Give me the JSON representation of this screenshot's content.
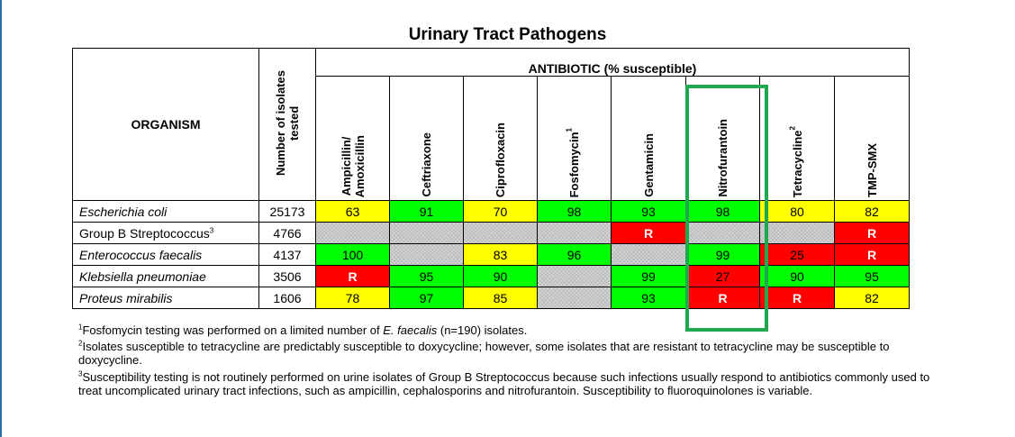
{
  "title": "Urinary Tract Pathogens",
  "header": {
    "organism": "ORGANISM",
    "isolates_line1": "Number of isolates",
    "isolates_line2": "tested",
    "antibiotic_group": "ANTIBIOTIC (% susceptible)"
  },
  "antibiotics": [
    {
      "label": "Ampicillin/",
      "label2": "Amoxicillin",
      "sup": ""
    },
    {
      "label": "Ceftriaxone",
      "sup": ""
    },
    {
      "label": "Ciprofloxacin",
      "sup": ""
    },
    {
      "label": "Fosfomycin",
      "sup": "1"
    },
    {
      "label": "Gentamicin",
      "sup": ""
    },
    {
      "label": "Nitrofurantoin",
      "sup": ""
    },
    {
      "label": "Tetracycline",
      "sup": "2"
    },
    {
      "label": "TMP-SMX",
      "sup": ""
    }
  ],
  "rows": [
    {
      "organism": "Escherichia coli",
      "sup": "",
      "isolates": "25173",
      "values": [
        "63",
        "91",
        "70",
        "98",
        "93",
        "98",
        "80",
        "82"
      ],
      "status": [
        "int",
        "sus",
        "int",
        "sus",
        "sus",
        "sus",
        "int",
        "int"
      ]
    },
    {
      "organism": "Group B Streptococcus",
      "sup": "3",
      "isolates": "4766",
      "values": [
        "",
        "",
        "",
        "",
        "R",
        "",
        "",
        "R"
      ],
      "status": [
        "na",
        "na",
        "na",
        "na",
        "res",
        "na",
        "na",
        "res"
      ]
    },
    {
      "organism": "Enterococcus faecalis",
      "sup": "",
      "isolates": "4137",
      "values": [
        "100",
        "",
        "83",
        "96",
        "",
        "99",
        "25",
        "R"
      ],
      "status": [
        "sus",
        "na",
        "int",
        "sus",
        "na",
        "sus",
        "resnum",
        "res"
      ]
    },
    {
      "organism": "Klebsiella pneumoniae",
      "sup": "",
      "isolates": "3506",
      "values": [
        "R",
        "95",
        "90",
        "",
        "99",
        "27",
        "90",
        "95"
      ],
      "status": [
        "res",
        "sus",
        "sus",
        "na",
        "sus",
        "resnum",
        "sus",
        "sus"
      ]
    },
    {
      "organism": "Proteus mirabilis",
      "sup": "",
      "isolates": "1606",
      "values": [
        "78",
        "97",
        "85",
        "",
        "93",
        "R",
        "R",
        "82"
      ],
      "status": [
        "int",
        "sus",
        "int",
        "na",
        "sus",
        "res",
        "res",
        "int"
      ]
    }
  ],
  "colors": {
    "susceptible": "#00ff00",
    "intermediate": "#ffff00",
    "resistant": "#ff0000",
    "highlight": "#1fa84f"
  },
  "footnotes": {
    "f1_sup": "1",
    "f1_a": "Fosfomycin testing was performed on a limited number of ",
    "f1_em": "E. faecalis",
    "f1_b": " (n=190) isolates.",
    "f2_sup": "2",
    "f2": "Isolates susceptible to tetracycline are predictably susceptible to doxycycline; however, some isolates that are resistant to tetracycline may be susceptible to doxycycline.",
    "f3_sup": "3",
    "f3": "Susceptibility testing is not routinely performed on urine isolates of Group B Streptococcus because such infections usually respond to antibiotics commonly used to treat uncomplicated urinary tract infections, such as ampicillin, cephalosporins and nitrofurantoin. Susceptibility to fluoroquinolones is variable."
  }
}
